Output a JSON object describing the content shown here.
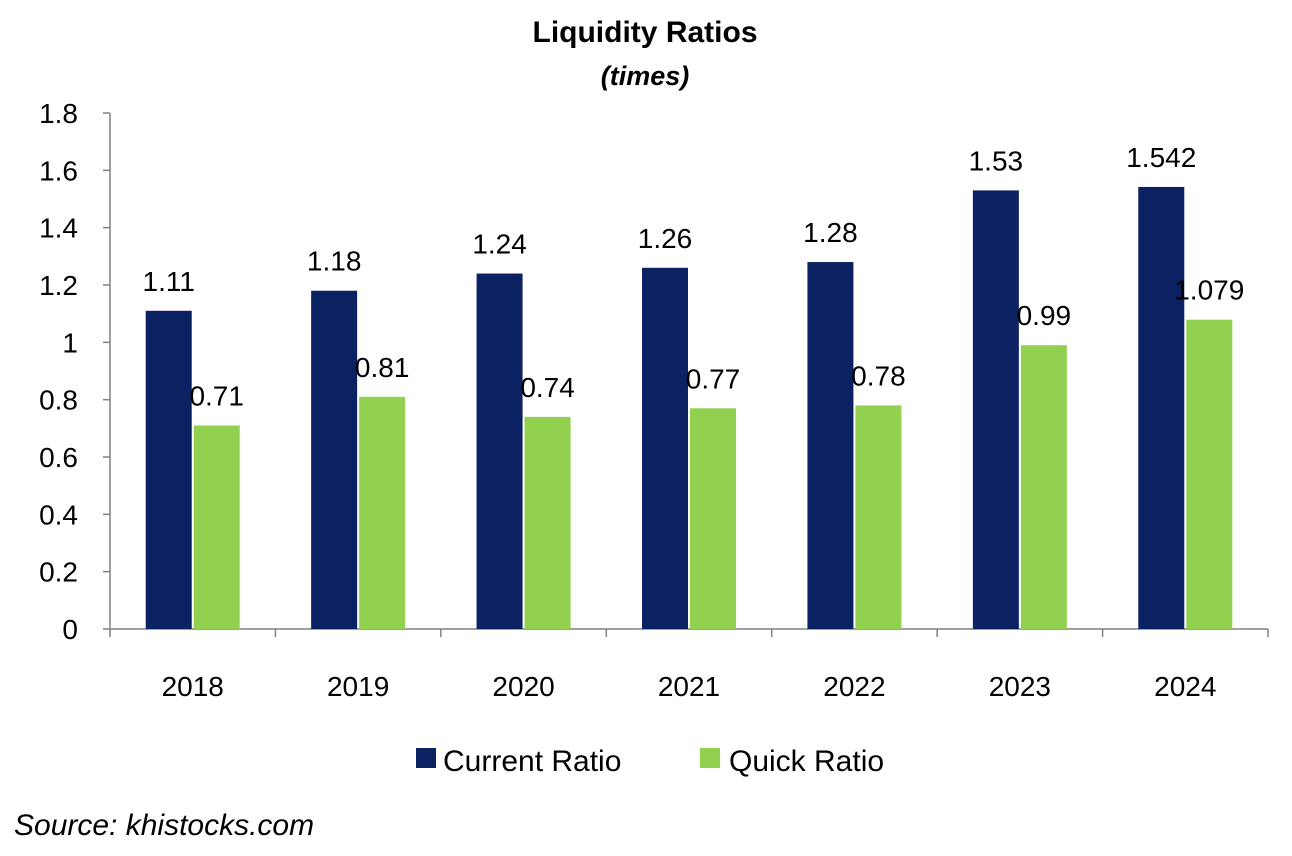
{
  "chart_data": {
    "type": "bar",
    "title": "Liquidity Ratios",
    "subtitle": "(times)",
    "categories": [
      "2018",
      "2019",
      "2020",
      "2021",
      "2022",
      "2023",
      "2024"
    ],
    "series": [
      {
        "name": "Current Ratio",
        "color": "#0b2161",
        "values": [
          1.11,
          1.18,
          1.24,
          1.26,
          1.28,
          1.53,
          1.542
        ],
        "labels": [
          "1.11",
          "1.18",
          "1.24",
          "1.26",
          "1.28",
          "1.53",
          "1.542"
        ]
      },
      {
        "name": "Quick Ratio",
        "color": "#92d050",
        "values": [
          0.71,
          0.81,
          0.74,
          0.77,
          0.78,
          0.99,
          1.079
        ],
        "labels": [
          "0.71",
          "0.81",
          "0.74",
          "0.77",
          "0.78",
          "0.99",
          "1.079"
        ]
      }
    ],
    "ylim": [
      0,
      1.8
    ],
    "yticks": [
      "0",
      "0.2",
      "0.4",
      "0.6",
      "0.8",
      "1",
      "1.2",
      "1.4",
      "1.6",
      "1.8"
    ],
    "xlabel": "",
    "ylabel": "",
    "grid": false,
    "legend_position": "bottom"
  },
  "source": "Source: khistocks.com"
}
